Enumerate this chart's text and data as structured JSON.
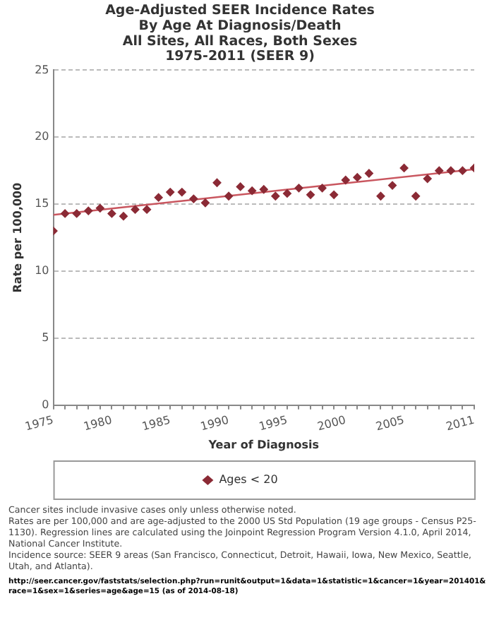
{
  "chart_data": {
    "type": "scatter",
    "title": "Age-Adjusted SEER Incidence Rates\nBy Age At Diagnosis/Death\nAll Sites, All Races, Both Sexes\n1975-2011 (SEER 9)",
    "xlabel": "Year of Diagnosis",
    "ylabel": "Rate per 100,000",
    "x": [
      1975,
      1976,
      1977,
      1978,
      1979,
      1980,
      1981,
      1982,
      1983,
      1984,
      1985,
      1986,
      1987,
      1988,
      1989,
      1990,
      1991,
      1992,
      1993,
      1994,
      1995,
      1996,
      1997,
      1998,
      1999,
      2000,
      2001,
      2002,
      2003,
      2004,
      2005,
      2006,
      2007,
      2008,
      2009,
      2010,
      2011
    ],
    "series": [
      {
        "name": "Ages < 20",
        "color": "#8b2a35",
        "marker": "diamond",
        "values": [
          13.0,
          14.3,
          14.3,
          14.5,
          14.7,
          14.3,
          14.1,
          14.6,
          14.6,
          15.5,
          15.9,
          15.9,
          15.4,
          15.1,
          16.6,
          15.6,
          16.3,
          16.0,
          16.1,
          15.6,
          15.8,
          16.2,
          15.7,
          16.2,
          15.7,
          16.8,
          17.0,
          17.3,
          15.6,
          16.4,
          17.7,
          15.6,
          16.9,
          17.5,
          17.5,
          17.5,
          17.7
        ]
      },
      {
        "type": "line",
        "color": "#c9565f",
        "marker": "none",
        "x": [
          1975,
          2011
        ],
        "values": [
          14.2,
          17.6
        ]
      }
    ],
    "xlim": [
      1975,
      2011
    ],
    "xticks": [
      1975,
      {
        "value": 1976,
        "label": null
      },
      {
        "value": 1977,
        "label": null
      },
      {
        "value": 1978,
        "label": null
      },
      {
        "value": 1979,
        "label": null
      },
      1980,
      {
        "value": 1981,
        "label": null
      },
      {
        "value": 1982,
        "label": null
      },
      {
        "value": 1983,
        "label": null
      },
      {
        "value": 1984,
        "label": null
      },
      1985,
      {
        "value": 1986,
        "label": null
      },
      {
        "value": 1987,
        "label": null
      },
      {
        "value": 1988,
        "label": null
      },
      {
        "value": 1989,
        "label": null
      },
      1990,
      {
        "value": 1991,
        "label": null
      },
      {
        "value": 1992,
        "label": null
      },
      {
        "value": 1993,
        "label": null
      },
      {
        "value": 1994,
        "label": null
      },
      1995,
      {
        "value": 1996,
        "label": null
      },
      {
        "value": 1997,
        "label": null
      },
      {
        "value": 1998,
        "label": null
      },
      {
        "value": 1999,
        "label": null
      },
      2000,
      {
        "value": 2001,
        "label": null
      },
      {
        "value": 2002,
        "label": null
      },
      {
        "value": 2003,
        "label": null
      },
      {
        "value": 2004,
        "label": null
      },
      2005,
      {
        "value": 2006,
        "label": null
      },
      {
        "value": 2007,
        "label": null
      },
      {
        "value": 2008,
        "label": null
      },
      {
        "value": 2009,
        "label": null
      },
      {
        "value": 2010,
        "label": null
      },
      2011
    ],
    "ylim": [
      0,
      25
    ],
    "yticks": [
      0,
      5,
      10,
      15,
      20,
      25
    ],
    "grid": "y",
    "legend": "bottom",
    "annotations": [
      "Cancer sites include invasive cases only unless otherwise noted.",
      "Rates are per 100,000 and are age-adjusted to the 2000 US Std Population (19 age groups - Census P25-1130). Regression lines are calculated using the Joinpoint Regression Program Version 4.1.0, April 2014, National Cancer Institute.",
      "Incidence source: SEER 9 areas (San Francisco, Connecticut, Detroit, Hawaii, Iowa, New Mexico, Seattle, Utah, and Atlanta).",
      "http://seer.cancer.gov/faststats/selection.php?run=runit&output=1&data=1&statistic=1&cancer=1&year=201401&race=1&sex=1&series=age&age=15 (as of 2014-08-18)"
    ]
  }
}
